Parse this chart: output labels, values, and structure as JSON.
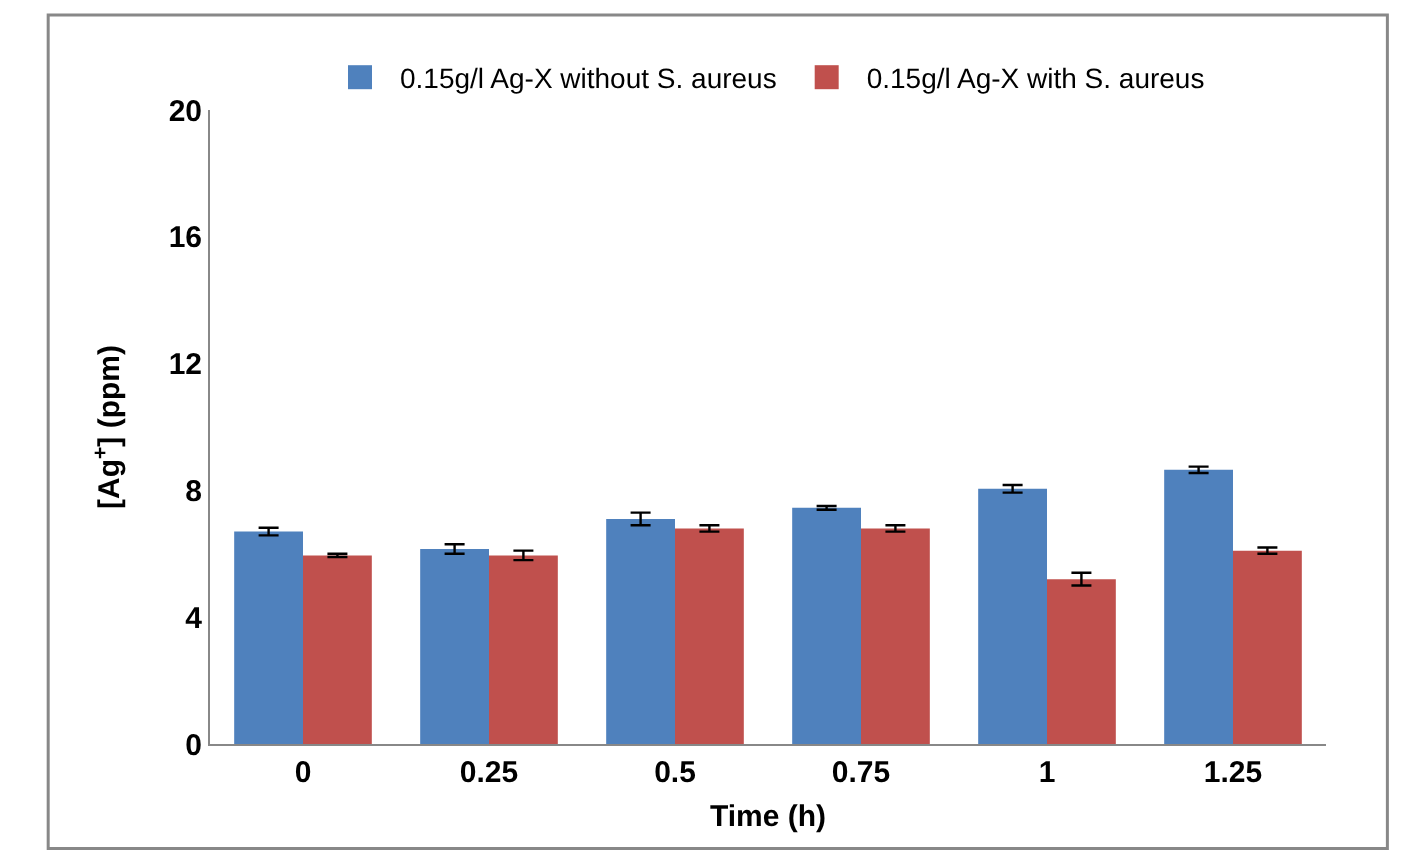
{
  "chart_data": {
    "type": "bar",
    "xlabel": "Time (h)",
    "ylabel": "[Ag$^{+}$] (ppm)",
    "categories": [
      "0",
      "0.25",
      "0.5",
      "0.75",
      "1",
      "1.25"
    ],
    "series": [
      {
        "name": "0.15g/l Ag-X without S. aureus",
        "color": "#4f81bd",
        "values": [
          6.7,
          6.15,
          7.1,
          7.45,
          8.05,
          8.65
        ],
        "errors": [
          0.12,
          0.15,
          0.2,
          0.06,
          0.12,
          0.1
        ]
      },
      {
        "name": "0.15g/l Ag-X with S. aureus",
        "color": "#c0504d",
        "values": [
          5.95,
          5.95,
          6.8,
          6.8,
          5.2,
          6.1
        ],
        "errors": [
          0.05,
          0.15,
          0.1,
          0.1,
          0.2,
          0.1
        ]
      }
    ],
    "ylim": [
      0,
      20
    ],
    "yticks": [
      0,
      4,
      8,
      12,
      16,
      20
    ],
    "legend": "top"
  }
}
